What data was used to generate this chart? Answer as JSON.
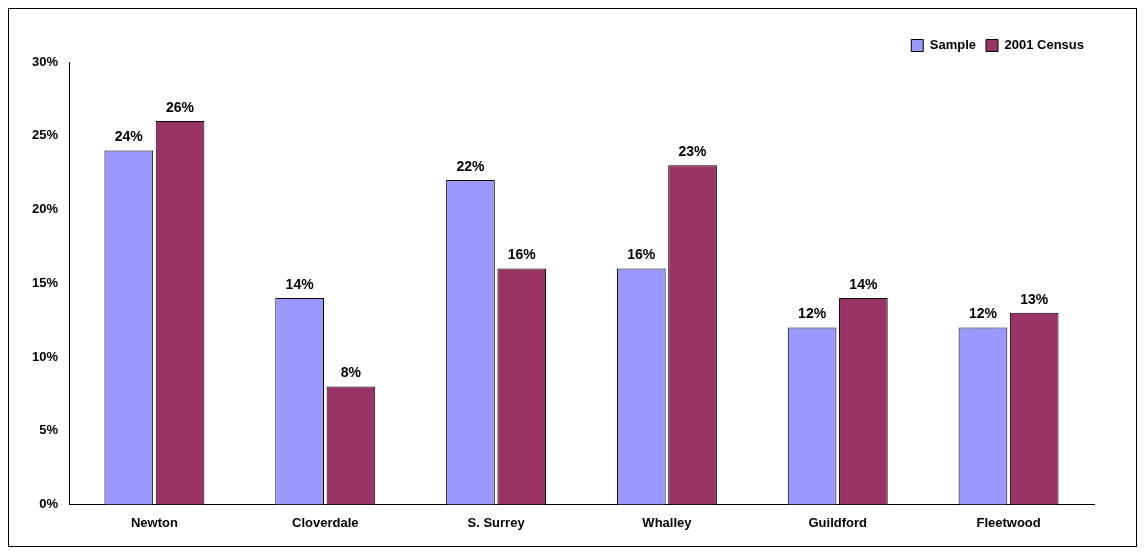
{
  "chart_data": {
    "type": "bar",
    "categories": [
      "Newton",
      "Cloverdale",
      "S. Surrey",
      "Whalley",
      "Guildford",
      "Fleetwood"
    ],
    "series": [
      {
        "name": "Sample",
        "color": "#9999ff",
        "values": [
          24,
          14,
          22,
          16,
          12,
          12
        ],
        "value_labels": [
          "24%",
          "14%",
          "22%",
          "16%",
          "12%",
          "12%"
        ]
      },
      {
        "name": "2001 Census",
        "color": "#993366",
        "values": [
          26,
          8,
          16,
          23,
          14,
          13
        ],
        "value_labels": [
          "26%",
          "8%",
          "16%",
          "23%",
          "14%",
          "13%"
        ]
      }
    ],
    "ylim": [
      0,
      30
    ],
    "yticks": [
      {
        "value": 0,
        "label": "0%"
      },
      {
        "value": 5,
        "label": "5%"
      },
      {
        "value": 10,
        "label": "10%"
      },
      {
        "value": 15,
        "label": "15%"
      },
      {
        "value": 20,
        "label": "20%"
      },
      {
        "value": 25,
        "label": "25%"
      },
      {
        "value": 30,
        "label": "30%"
      }
    ],
    "grid": false,
    "legend": "top right"
  }
}
